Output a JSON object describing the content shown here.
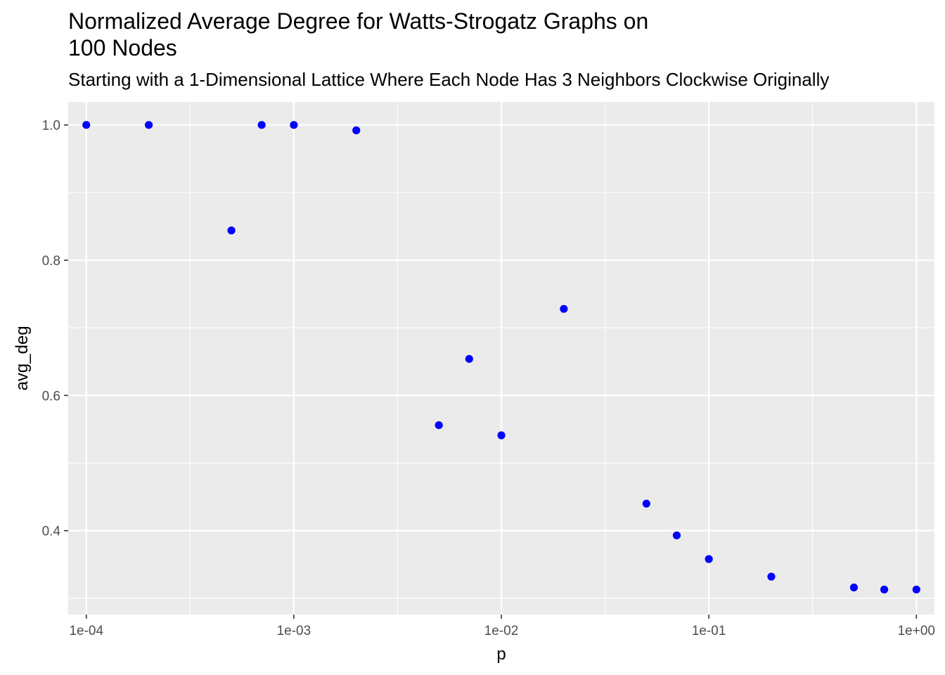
{
  "chart_data": {
    "type": "scatter",
    "title_lines": [
      "Normalized Average Degree for Watts-Strogatz Graphs on",
      "100 Nodes"
    ],
    "subtitle": "Starting with a 1-Dimensional Lattice Where Each Node Has 3 Neighbors Clockwise Originally",
    "xlabel": "p",
    "ylabel": "avg_deg",
    "x_scale": "log10",
    "xlim": [
      8.18e-05,
      1.222
    ],
    "ylim": [
      0.276,
      1.034
    ],
    "x_ticks": [
      {
        "value": 0.0001,
        "label": "1e-04"
      },
      {
        "value": 0.001,
        "label": "1e-03"
      },
      {
        "value": 0.01,
        "label": "1e-02"
      },
      {
        "value": 0.1,
        "label": "1e-01"
      },
      {
        "value": 1,
        "label": "1e+00"
      }
    ],
    "x_minor_ticks": [
      0.000316,
      0.00316,
      0.0316,
      0.316
    ],
    "y_ticks": [
      {
        "value": 0.4,
        "label": "0.4"
      },
      {
        "value": 0.6,
        "label": "0.6"
      },
      {
        "value": 0.8,
        "label": "0.8"
      },
      {
        "value": 1.0,
        "label": "1.0"
      }
    ],
    "y_minor_ticks": [
      0.3,
      0.5,
      0.7,
      0.9
    ],
    "grid": true,
    "point_color": "#0000ff",
    "panel_color": "#ebebeb",
    "grid_color": "#ffffff",
    "points": [
      {
        "x": 0.0001,
        "y": 1.0
      },
      {
        "x": 0.0002,
        "y": 1.0
      },
      {
        "x": 0.0005,
        "y": 0.844
      },
      {
        "x": 0.0007,
        "y": 1.0
      },
      {
        "x": 0.001,
        "y": 1.0
      },
      {
        "x": 0.002,
        "y": 0.992
      },
      {
        "x": 0.005,
        "y": 0.556
      },
      {
        "x": 0.007,
        "y": 0.654
      },
      {
        "x": 0.01,
        "y": 0.541
      },
      {
        "x": 0.02,
        "y": 0.728
      },
      {
        "x": 0.05,
        "y": 0.44
      },
      {
        "x": 0.07,
        "y": 0.393
      },
      {
        "x": 0.1,
        "y": 0.358
      },
      {
        "x": 0.2,
        "y": 0.332
      },
      {
        "x": 0.5,
        "y": 0.316
      },
      {
        "x": 0.7,
        "y": 0.313
      },
      {
        "x": 1.0,
        "y": 0.313
      }
    ]
  }
}
